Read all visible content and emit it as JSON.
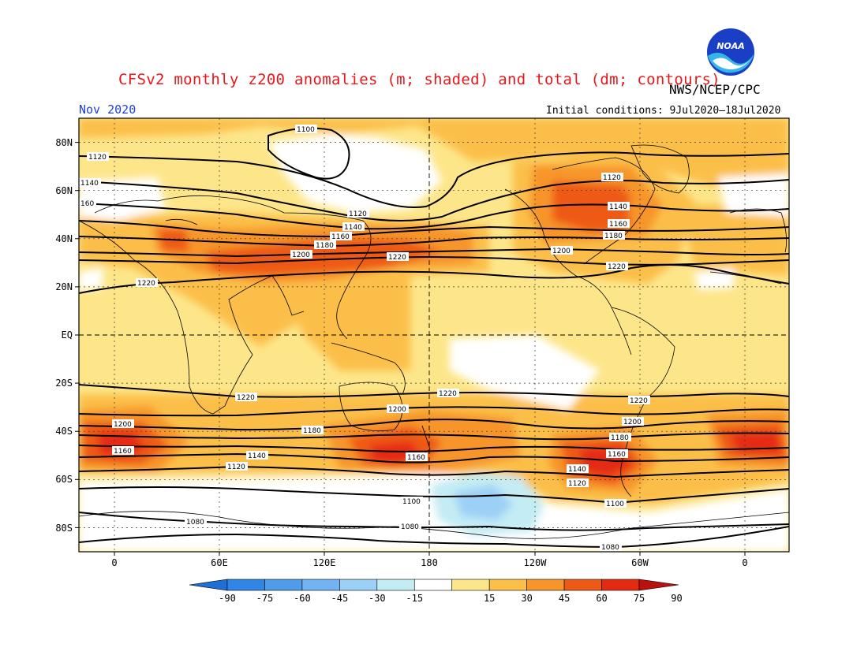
{
  "title": "CFSv2 monthly z200 anomalies (m; shaded) and total (dm; contours)",
  "month": "Nov 2020",
  "org": "NWS/NCEP/CPC",
  "initial_conditions": "Initial conditions: 9Jul2020–18Jul2020",
  "logo_text": "NOAA",
  "lat_ticks": [
    "80N",
    "60N",
    "40N",
    "20N",
    "EQ",
    "20S",
    "40S",
    "60S",
    "80S"
  ],
  "lon_ticks": [
    "0",
    "60E",
    "120E",
    "180",
    "120W",
    "60W",
    "0"
  ],
  "colorbar": {
    "labels": [
      "-90",
      "-75",
      "-60",
      "-45",
      "-30",
      "-15",
      "15",
      "30",
      "45",
      "60",
      "75",
      "90"
    ],
    "colors": [
      "#1f6fd6",
      "#2f86e6",
      "#4f9cec",
      "#72b4f2",
      "#9cd0f6",
      "#c4ecf4",
      "#ffffff",
      "#fde68a",
      "#fbbf4a",
      "#f7952a",
      "#ee5a16",
      "#e52a12",
      "#b9120e"
    ]
  },
  "contour_labels": {
    "c1100": "1100",
    "c1120": "1120",
    "c1140": "1140",
    "c1160": "1160",
    "c1180": "1180",
    "c1200": "1200",
    "c1220": "1220",
    "c1080": "1080"
  }
}
